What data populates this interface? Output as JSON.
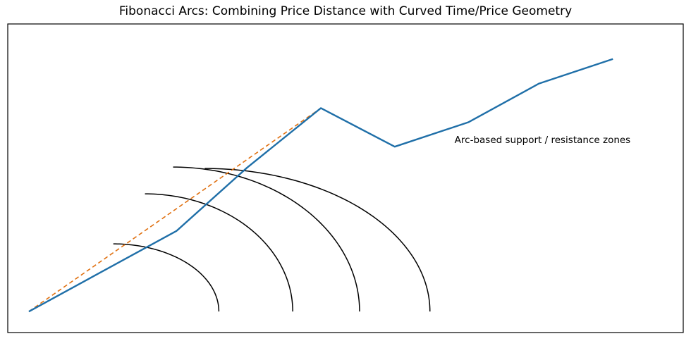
{
  "chart_data": {
    "type": "line",
    "title": "Fibonacci Arcs: Combining Price Distance with Curved Time/Price Geometry",
    "xlabel": "",
    "ylabel": "",
    "xlim": [
      -0.6,
      18.6
    ],
    "ylim": [
      -0.6,
      8.2
    ],
    "grid": false,
    "ticks_visible": false,
    "series": [
      {
        "color": "#1f6fa8",
        "style": "solid",
        "x": [
          0,
          4.2,
          6.2,
          8.3,
          10.4,
          12.5,
          14.5,
          16.6
        ],
        "y": [
          0,
          2.3,
          4.1,
          5.8,
          4.7,
          5.4,
          6.5,
          7.2
        ]
      }
    ],
    "trend_line": {
      "color": "#e07010",
      "style": "dashed",
      "x": [
        0,
        8.3
      ],
      "y": [
        0,
        5.8
      ]
    },
    "arcs": {
      "color": "#000000",
      "center": [
        8.3,
        0
      ],
      "levels": [
        {
          "ratio": 0.382,
          "start_x": 2.4,
          "end_x": 5.4
        },
        {
          "ratio": 0.5,
          "start_x": 3.3,
          "end_x": 7.5
        },
        {
          "ratio": 0.618,
          "start_x": 4.1,
          "end_x": 9.4
        },
        {
          "ratio": 0.786,
          "start_x": 5.0,
          "end_x": 11.4
        }
      ]
    },
    "annotations": [
      {
        "text": "Arc-based support / resistance zones",
        "x": 12.1,
        "y": 4.8
      }
    ]
  }
}
